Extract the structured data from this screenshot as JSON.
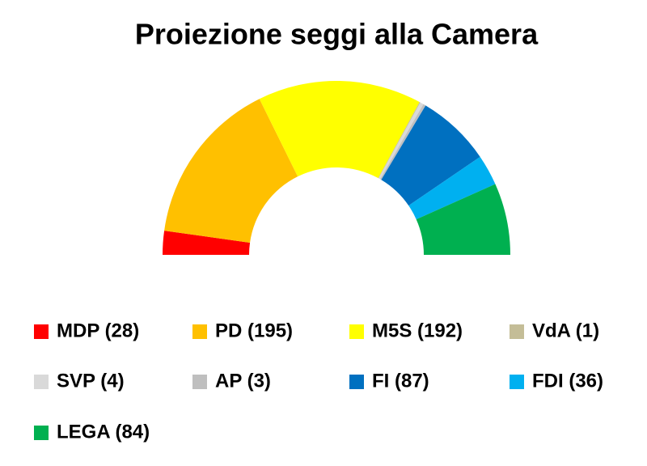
{
  "chart_data": {
    "type": "half-donut",
    "title": "Proiezione seggi alla Camera",
    "categories": [
      "MDP (28)",
      "PD (195)",
      "M5S (192)",
      "VdA (1)",
      "SVP (4)",
      "AP (3)",
      "FI (87)",
      "FDI (36)",
      "LEGA (84)"
    ],
    "values": [
      28,
      195,
      192,
      1,
      4,
      3,
      87,
      36,
      84
    ],
    "colors": [
      "#ff0000",
      "#ffc000",
      "#ffff00",
      "#c4bd97",
      "#d9d9d9",
      "#bfbfbf",
      "#0070c0",
      "#00b0f0",
      "#00b050"
    ],
    "legend": "bottom"
  }
}
